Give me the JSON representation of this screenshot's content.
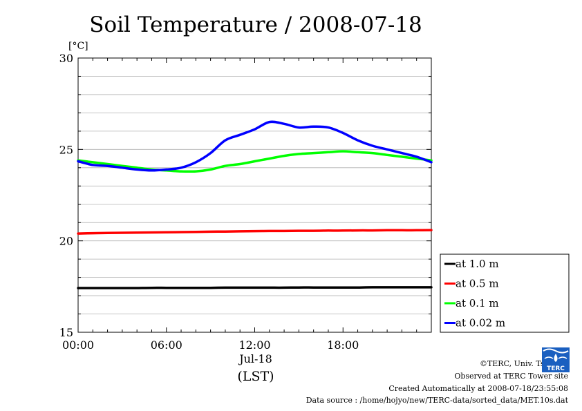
{
  "chart_data": {
    "type": "line",
    "title": "Soil Temperature / 2008-07-18",
    "ylabel": "[°C]",
    "xlabel": "(LST)",
    "x_date_label": "Jul-18",
    "ylim": [
      15,
      30
    ],
    "xlim": [
      0,
      24
    ],
    "yticks": [
      15,
      20,
      25,
      30
    ],
    "xticks": [
      {
        "value": 0,
        "label": "00:00"
      },
      {
        "value": 6,
        "label": "06:00"
      },
      {
        "value": 12,
        "label": "12:00"
      },
      {
        "value": 18,
        "label": "18:00"
      }
    ],
    "grid": true,
    "legend_position": "right",
    "x": [
      0,
      1,
      2,
      3,
      4,
      5,
      6,
      7,
      8,
      9,
      10,
      11,
      12,
      13,
      14,
      15,
      16,
      17,
      18,
      19,
      20,
      21,
      22,
      23,
      24
    ],
    "series": [
      {
        "name": "at 1.0 m",
        "color": "#000000",
        "values": [
          17.42,
          17.42,
          17.42,
          17.42,
          17.42,
          17.43,
          17.43,
          17.43,
          17.43,
          17.43,
          17.44,
          17.44,
          17.44,
          17.44,
          17.44,
          17.45,
          17.45,
          17.45,
          17.45,
          17.45,
          17.46,
          17.46,
          17.46,
          17.46,
          17.46
        ]
      },
      {
        "name": "at 0.5 m",
        "color": "#ff0000",
        "values": [
          20.4,
          20.42,
          20.43,
          20.44,
          20.45,
          20.46,
          20.47,
          20.48,
          20.49,
          20.5,
          20.51,
          20.52,
          20.53,
          20.54,
          20.54,
          20.55,
          20.55,
          20.56,
          20.56,
          20.57,
          20.57,
          20.58,
          20.58,
          20.58,
          20.59
        ]
      },
      {
        "name": "at 0.1 m",
        "color": "#00ff00",
        "values": [
          24.4,
          24.3,
          24.2,
          24.1,
          24.0,
          23.9,
          23.85,
          23.8,
          23.8,
          23.9,
          24.1,
          24.2,
          24.35,
          24.5,
          24.65,
          24.75,
          24.8,
          24.85,
          24.9,
          24.85,
          24.8,
          24.7,
          24.6,
          24.5,
          24.4
        ]
      },
      {
        "name": "at 0.02 m",
        "color": "#0000ff",
        "values": [
          24.35,
          24.15,
          24.1,
          24.0,
          23.9,
          23.85,
          23.9,
          24.0,
          24.3,
          24.8,
          25.5,
          25.8,
          26.1,
          26.5,
          26.4,
          26.2,
          26.25,
          26.2,
          25.9,
          25.5,
          25.2,
          25.0,
          24.8,
          24.6,
          24.3
        ]
      }
    ]
  },
  "credits": {
    "copyright": "©TERC, Univ. Tsukuba",
    "observed": "Observed at TERC Tower site",
    "created": "Created Automatically at 2008-07-18/23:55:08",
    "source": "Data source : /home/hojyo/new/TERC-data/sorted_data/MET.10s.dat"
  },
  "logo": {
    "text": "TERC",
    "color": "#1a5fc0"
  }
}
